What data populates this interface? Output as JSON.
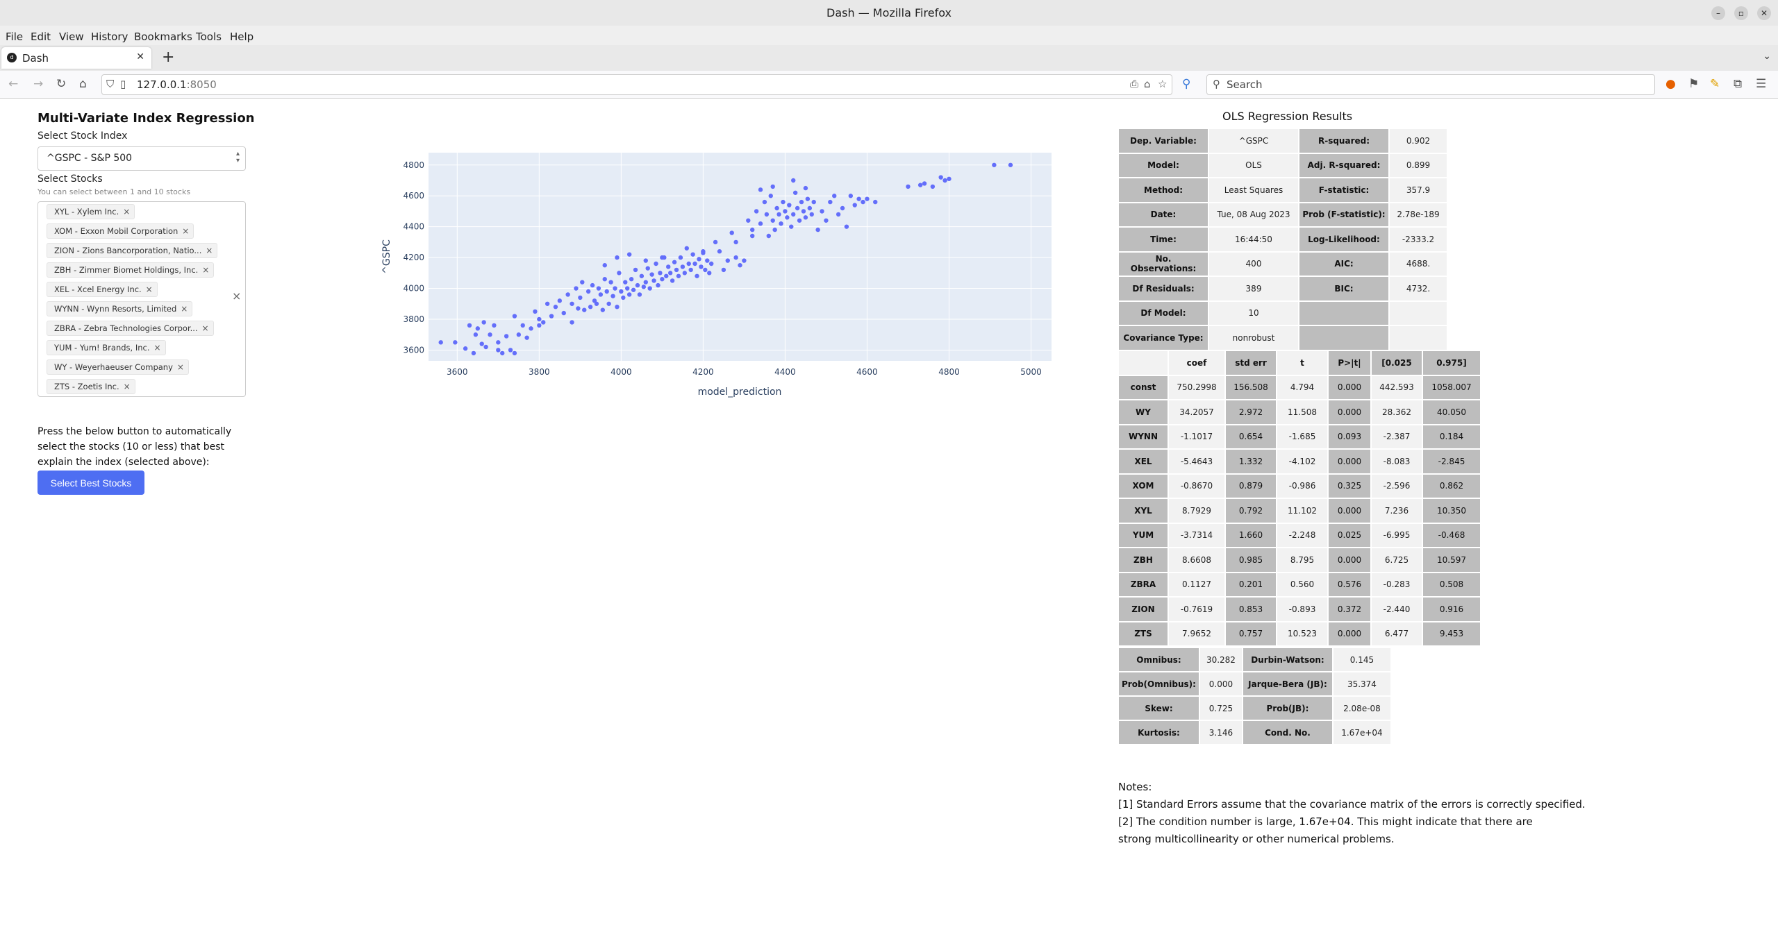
{
  "window": {
    "title": "Dash — Mozilla Firefox"
  },
  "menu": [
    "File",
    "Edit",
    "View",
    "History",
    "Bookmarks",
    "Tools",
    "Help"
  ],
  "tab": {
    "label": "Dash"
  },
  "url": {
    "host": "127.0.0.1",
    "port": ":8050"
  },
  "search": {
    "placeholder": "Search"
  },
  "app": {
    "title": "Multi-Variate Index Regression",
    "index_label": "Select Stock Index",
    "index_value": "^GSPC - S&P 500",
    "stocks_label": "Select Stocks",
    "stocks_hint": "You can select between 1 and 10 stocks",
    "stocks": [
      "XYL - Xylem Inc.",
      "XOM - Exxon Mobil Corporation",
      "ZION - Zions Bancorporation, Natio...",
      "ZBH - Zimmer Biomet Holdings, Inc.",
      "XEL - Xcel Energy Inc.",
      "WYNN - Wynn Resorts, Limited",
      "ZBRA - Zebra Technologies Corpor...",
      "YUM - Yum! Brands, Inc.",
      "WY - Weyerhaeuser Company",
      "ZTS - Zoetis Inc."
    ],
    "button_text": "Press the below button to automatically select the stocks (10 or less) that best explain the index (selected above):",
    "button_label": "Select Best Stocks"
  },
  "chart_data": {
    "type": "scatter",
    "xlabel": "model_prediction",
    "ylabel": "^GSPC",
    "xlim": [
      3530,
      5050
    ],
    "ylim": [
      3530,
      4880
    ],
    "xticks": [
      3600,
      3800,
      4000,
      4200,
      4400,
      4600,
      4800,
      5000
    ],
    "yticks": [
      3600,
      3800,
      4000,
      4200,
      4400,
      4600,
      4800
    ],
    "color": "#636efa",
    "points": [
      [
        3595,
        3650
      ],
      [
        3620,
        3610
      ],
      [
        3630,
        3760
      ],
      [
        3640,
        3580
      ],
      [
        3645,
        3700
      ],
      [
        3650,
        3740
      ],
      [
        3660,
        3640
      ],
      [
        3665,
        3780
      ],
      [
        3670,
        3620
      ],
      [
        3680,
        3700
      ],
      [
        3690,
        3760
      ],
      [
        3700,
        3650
      ],
      [
        3710,
        3580
      ],
      [
        3720,
        3690
      ],
      [
        3730,
        3600
      ],
      [
        3740,
        3820
      ],
      [
        3750,
        3700
      ],
      [
        3760,
        3760
      ],
      [
        3770,
        3680
      ],
      [
        3780,
        3740
      ],
      [
        3790,
        3850
      ],
      [
        3800,
        3760
      ],
      [
        3800,
        3800
      ],
      [
        3810,
        3780
      ],
      [
        3820,
        3900
      ],
      [
        3830,
        3820
      ],
      [
        3840,
        3880
      ],
      [
        3850,
        3920
      ],
      [
        3860,
        3840
      ],
      [
        3870,
        3960
      ],
      [
        3880,
        3900
      ],
      [
        3890,
        4000
      ],
      [
        3895,
        3870
      ],
      [
        3900,
        3940
      ],
      [
        3905,
        4040
      ],
      [
        3910,
        3860
      ],
      [
        3920,
        3980
      ],
      [
        3925,
        3880
      ],
      [
        3930,
        4020
      ],
      [
        3935,
        3920
      ],
      [
        3940,
        3900
      ],
      [
        3945,
        4000
      ],
      [
        3950,
        3960
      ],
      [
        3955,
        3860
      ],
      [
        3960,
        4060
      ],
      [
        3965,
        3980
      ],
      [
        3970,
        3900
      ],
      [
        3975,
        4040
      ],
      [
        3980,
        3950
      ],
      [
        3985,
        4000
      ],
      [
        3990,
        3880
      ],
      [
        3995,
        4100
      ],
      [
        4000,
        3980
      ],
      [
        4005,
        3940
      ],
      [
        4010,
        4040
      ],
      [
        4015,
        4000
      ],
      [
        4020,
        3960
      ],
      [
        4025,
        4060
      ],
      [
        4030,
        3990
      ],
      [
        4035,
        4120
      ],
      [
        4040,
        4020
      ],
      [
        4045,
        3960
      ],
      [
        4050,
        4080
      ],
      [
        4055,
        4010
      ],
      [
        4060,
        4040
      ],
      [
        4065,
        4130
      ],
      [
        4070,
        4000
      ],
      [
        4075,
        4090
      ],
      [
        4080,
        4050
      ],
      [
        4085,
        4160
      ],
      [
        4090,
        4020
      ],
      [
        4095,
        4100
      ],
      [
        4100,
        4060
      ],
      [
        4105,
        4200
      ],
      [
        4110,
        4080
      ],
      [
        4115,
        4140
      ],
      [
        4120,
        4100
      ],
      [
        4125,
        4050
      ],
      [
        4130,
        4170
      ],
      [
        4135,
        4120
      ],
      [
        4140,
        4080
      ],
      [
        4145,
        4200
      ],
      [
        4150,
        4140
      ],
      [
        4155,
        4100
      ],
      [
        4160,
        4260
      ],
      [
        4165,
        4160
      ],
      [
        4170,
        4120
      ],
      [
        4175,
        4220
      ],
      [
        4180,
        4160
      ],
      [
        4185,
        4080
      ],
      [
        4190,
        4190
      ],
      [
        4195,
        4140
      ],
      [
        4200,
        4230
      ],
      [
        4205,
        4120
      ],
      [
        4210,
        4180
      ],
      [
        4215,
        4100
      ],
      [
        4220,
        4160
      ],
      [
        4230,
        4300
      ],
      [
        4240,
        4240
      ],
      [
        4250,
        4120
      ],
      [
        4260,
        4180
      ],
      [
        4270,
        4360
      ],
      [
        4280,
        4200
      ],
      [
        4290,
        4150
      ],
      [
        4300,
        4180
      ],
      [
        4310,
        4440
      ],
      [
        4320,
        4380
      ],
      [
        4330,
        4500
      ],
      [
        4340,
        4420
      ],
      [
        4350,
        4560
      ],
      [
        4355,
        4480
      ],
      [
        4360,
        4340
      ],
      [
        4365,
        4600
      ],
      [
        4370,
        4440
      ],
      [
        4375,
        4380
      ],
      [
        4380,
        4520
      ],
      [
        4385,
        4480
      ],
      [
        4390,
        4420
      ],
      [
        4395,
        4560
      ],
      [
        4400,
        4500
      ],
      [
        4405,
        4460
      ],
      [
        4410,
        4540
      ],
      [
        4415,
        4400
      ],
      [
        4420,
        4480
      ],
      [
        4425,
        4620
      ],
      [
        4430,
        4520
      ],
      [
        4435,
        4440
      ],
      [
        4440,
        4560
      ],
      [
        4445,
        4500
      ],
      [
        4450,
        4460
      ],
      [
        4455,
        4580
      ],
      [
        4460,
        4520
      ],
      [
        4465,
        4480
      ],
      [
        4470,
        4560
      ],
      [
        4480,
        4380
      ],
      [
        4490,
        4500
      ],
      [
        4500,
        4440
      ],
      [
        4510,
        4560
      ],
      [
        4520,
        4600
      ],
      [
        4530,
        4480
      ],
      [
        4540,
        4520
      ],
      [
        4550,
        4400
      ],
      [
        4560,
        4600
      ],
      [
        4570,
        4540
      ],
      [
        4580,
        4580
      ],
      [
        4590,
        4560
      ],
      [
        4600,
        4580
      ],
      [
        4620,
        4560
      ],
      [
        4700,
        4660
      ],
      [
        4730,
        4670
      ],
      [
        4740,
        4680
      ],
      [
        4760,
        4660
      ],
      [
        4780,
        4720
      ],
      [
        4790,
        4700
      ],
      [
        4800,
        4710
      ],
      [
        4910,
        4800
      ],
      [
        4950,
        4800
      ],
      [
        3560,
        3650
      ],
      [
        3700,
        3600
      ],
      [
        3740,
        3580
      ],
      [
        3880,
        3780
      ],
      [
        3960,
        4150
      ],
      [
        3990,
        4200
      ],
      [
        4020,
        4220
      ],
      [
        4060,
        4180
      ],
      [
        4100,
        4200
      ],
      [
        4200,
        4240
      ],
      [
        4280,
        4300
      ],
      [
        4320,
        4340
      ],
      [
        4340,
        4640
      ],
      [
        4370,
        4660
      ],
      [
        4420,
        4700
      ],
      [
        4450,
        4650
      ]
    ]
  },
  "ols": {
    "title": "OLS Regression Results",
    "summary": [
      [
        "Dep. Variable:",
        "^GSPC",
        "R-squared:",
        "0.902"
      ],
      [
        "Model:",
        "OLS",
        "Adj. R-squared:",
        "0.899"
      ],
      [
        "Method:",
        "Least Squares",
        "F-statistic:",
        "357.9"
      ],
      [
        "Date:",
        "Tue, 08 Aug 2023",
        "Prob (F-statistic):",
        "2.78e-189"
      ],
      [
        "Time:",
        "16:44:50",
        "Log-Likelihood:",
        "-2333.2"
      ],
      [
        "No. Observations:",
        "400",
        "AIC:",
        "4688."
      ],
      [
        "Df Residuals:",
        "389",
        "BIC:",
        "4732."
      ],
      [
        "Df Model:",
        "10",
        "",
        ""
      ],
      [
        "Covariance Type:",
        "nonrobust",
        "",
        ""
      ]
    ],
    "coef_header": [
      "",
      "coef",
      "std err",
      "t",
      "P>|t|",
      "[0.025",
      "0.975]"
    ],
    "coef_rows": [
      [
        "const",
        "750.2998",
        "156.508",
        "4.794",
        "0.000",
        "442.593",
        "1058.007"
      ],
      [
        "WY",
        "34.2057",
        "2.972",
        "11.508",
        "0.000",
        "28.362",
        "40.050"
      ],
      [
        "WYNN",
        "-1.1017",
        "0.654",
        "-1.685",
        "0.093",
        "-2.387",
        "0.184"
      ],
      [
        "XEL",
        "-5.4643",
        "1.332",
        "-4.102",
        "0.000",
        "-8.083",
        "-2.845"
      ],
      [
        "XOM",
        "-0.8670",
        "0.879",
        "-0.986",
        "0.325",
        "-2.596",
        "0.862"
      ],
      [
        "XYL",
        "8.7929",
        "0.792",
        "11.102",
        "0.000",
        "7.236",
        "10.350"
      ],
      [
        "YUM",
        "-3.7314",
        "1.660",
        "-2.248",
        "0.025",
        "-6.995",
        "-0.468"
      ],
      [
        "ZBH",
        "8.6608",
        "0.985",
        "8.795",
        "0.000",
        "6.725",
        "10.597"
      ],
      [
        "ZBRA",
        "0.1127",
        "0.201",
        "0.560",
        "0.576",
        "-0.283",
        "0.508"
      ],
      [
        "ZION",
        "-0.7619",
        "0.853",
        "-0.893",
        "0.372",
        "-2.440",
        "0.916"
      ],
      [
        "ZTS",
        "7.9652",
        "0.757",
        "10.523",
        "0.000",
        "6.477",
        "9.453"
      ]
    ],
    "diag": [
      [
        "Omnibus:",
        "30.282",
        "Durbin-Watson:",
        "0.145"
      ],
      [
        "Prob(Omnibus):",
        "0.000",
        "Jarque-Bera (JB):",
        "35.374"
      ],
      [
        "Skew:",
        "0.725",
        "Prob(JB):",
        "2.08e-08"
      ],
      [
        "Kurtosis:",
        "3.146",
        "Cond. No.",
        "1.67e+04"
      ]
    ],
    "notes": [
      "Notes:",
      "[1] Standard Errors assume that the covariance matrix of the errors is correctly specified.",
      "[2] The condition number is large, 1.67e+04. This might indicate that there are",
      "strong multicollinearity or other numerical problems."
    ]
  }
}
